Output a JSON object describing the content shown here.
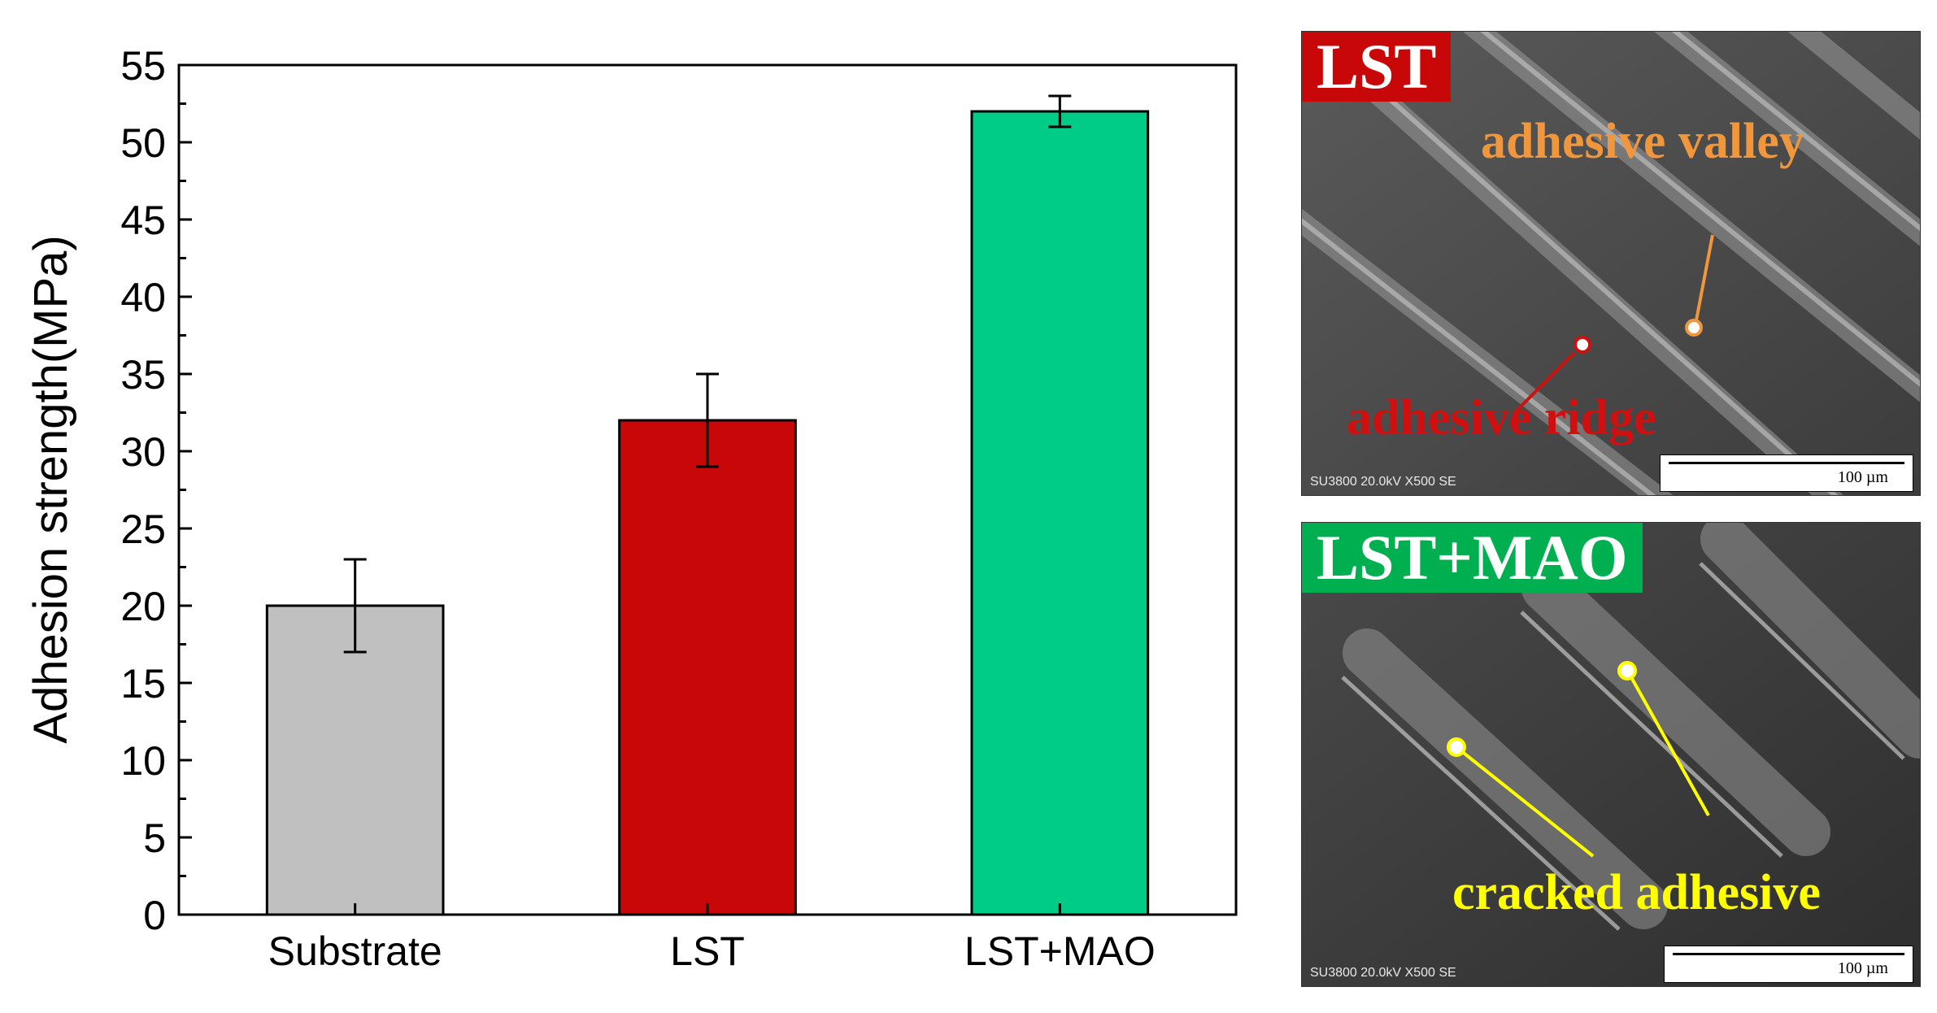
{
  "chart_data": {
    "type": "bar",
    "ylabel": "Adhesion strength(MPa)",
    "xlabel": "",
    "ylim": [
      0,
      55
    ],
    "yticks": [
      "0",
      "5",
      "10",
      "15",
      "20",
      "25",
      "30",
      "35",
      "40",
      "45",
      "50",
      "55"
    ],
    "categories": [
      "Substrate",
      "LST",
      "LST+MAO"
    ],
    "values": [
      20,
      32,
      52
    ],
    "errors": [
      3,
      3,
      1
    ],
    "colors": [
      "#c0c0c0",
      "#c80808",
      "#00cc88"
    ]
  },
  "sem_panels": [
    {
      "label": "LST",
      "label_color": "#c80808",
      "info": "SU3800 20.0kV X500 SE",
      "scale": "100 µm",
      "annotations": [
        {
          "text": "adhesive valley",
          "color": "#f0963c"
        },
        {
          "text": "adhesive ridge",
          "color": "#d01010"
        }
      ]
    },
    {
      "label": "LST+MAO",
      "label_color": "#00b050",
      "info": "SU3800 20.0kV X500 SE",
      "scale": "100 µm",
      "annotations": [
        {
          "text": "cracked adhesive",
          "color": "#ffff00"
        }
      ]
    }
  ]
}
